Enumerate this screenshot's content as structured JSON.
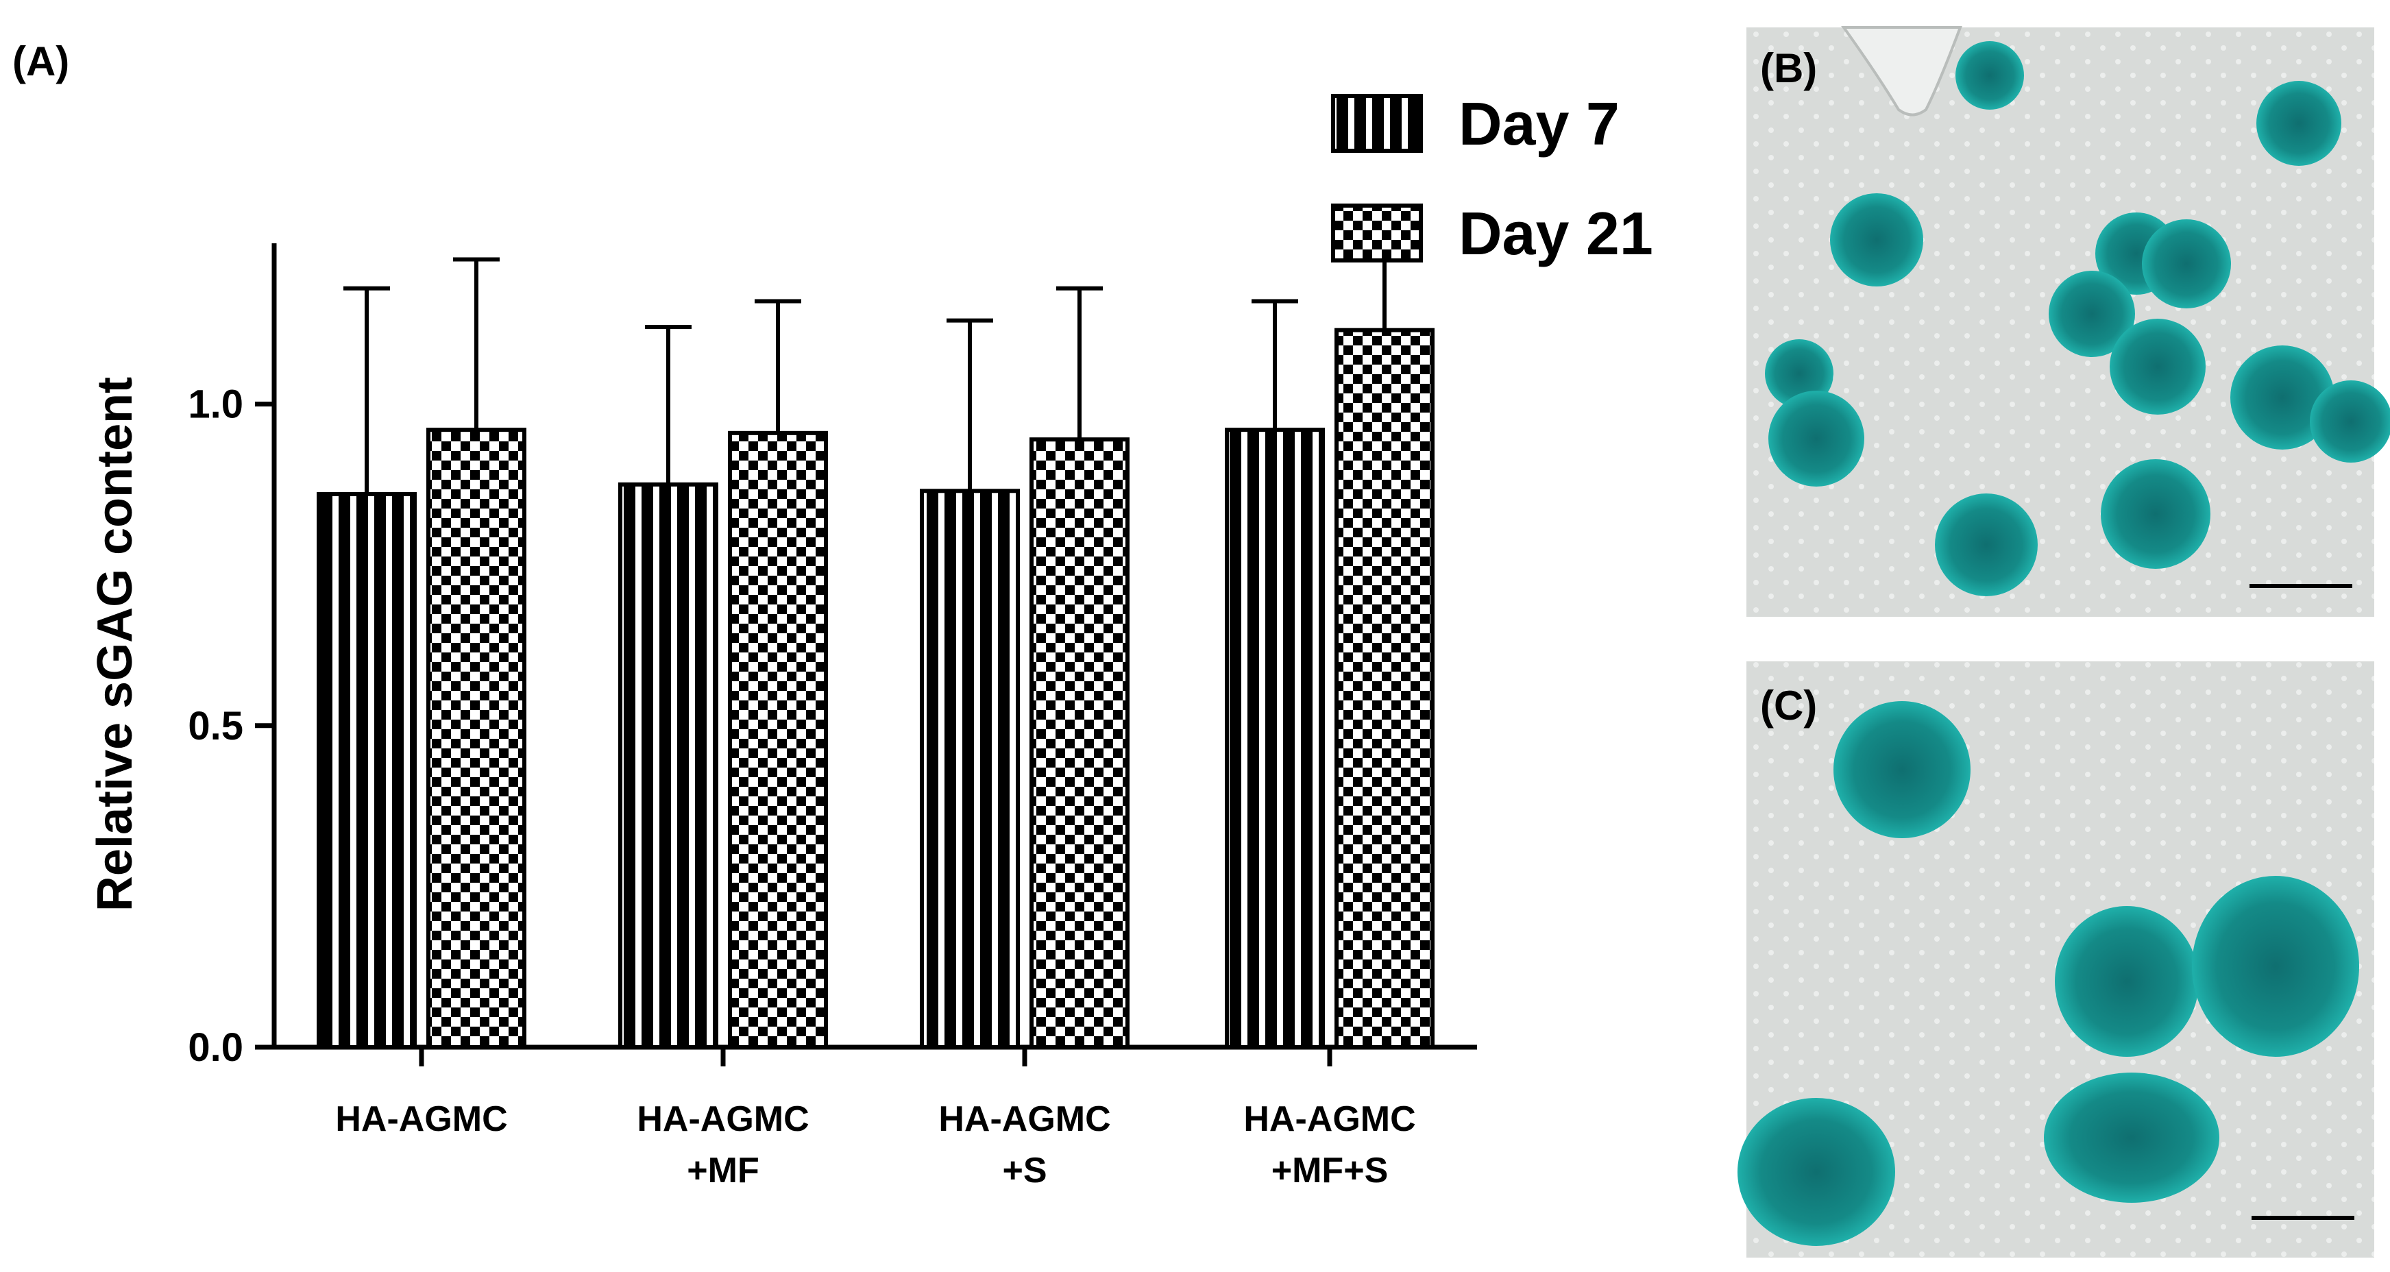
{
  "panels": {
    "a_label": "(A)",
    "b_label": "(B)",
    "c_label": "(C)"
  },
  "chart_data": {
    "type": "bar",
    "title": "",
    "xlabel": "",
    "ylabel": "Relative sGAG content",
    "ylim": [
      0,
      1.25
    ],
    "yticks": [
      "0.0",
      "0.5",
      "1.0"
    ],
    "categories": [
      [
        "HA-AGMC"
      ],
      [
        "HA-AGMC",
        "+MF"
      ],
      [
        "HA-AGMC",
        "+S"
      ],
      [
        "HA-AGMC",
        "+MF+S"
      ]
    ],
    "series": [
      {
        "name": "Day 7",
        "pattern": "vertical-stripes",
        "values": [
          0.86,
          0.875,
          0.865,
          0.96
        ],
        "errors": [
          0.32,
          0.245,
          0.265,
          0.2
        ]
      },
      {
        "name": "Day 21",
        "pattern": "checkerboard",
        "values": [
          0.96,
          0.955,
          0.945,
          1.115
        ],
        "errors": [
          0.265,
          0.205,
          0.235,
          0.115
        ]
      }
    ],
    "legend_position": "top-right",
    "grid": false
  },
  "micrographs": {
    "background_color": "#d9dcda",
    "spheroid_color": "#1a9e9a",
    "spheroid_dark_color": "#0f6f70"
  }
}
